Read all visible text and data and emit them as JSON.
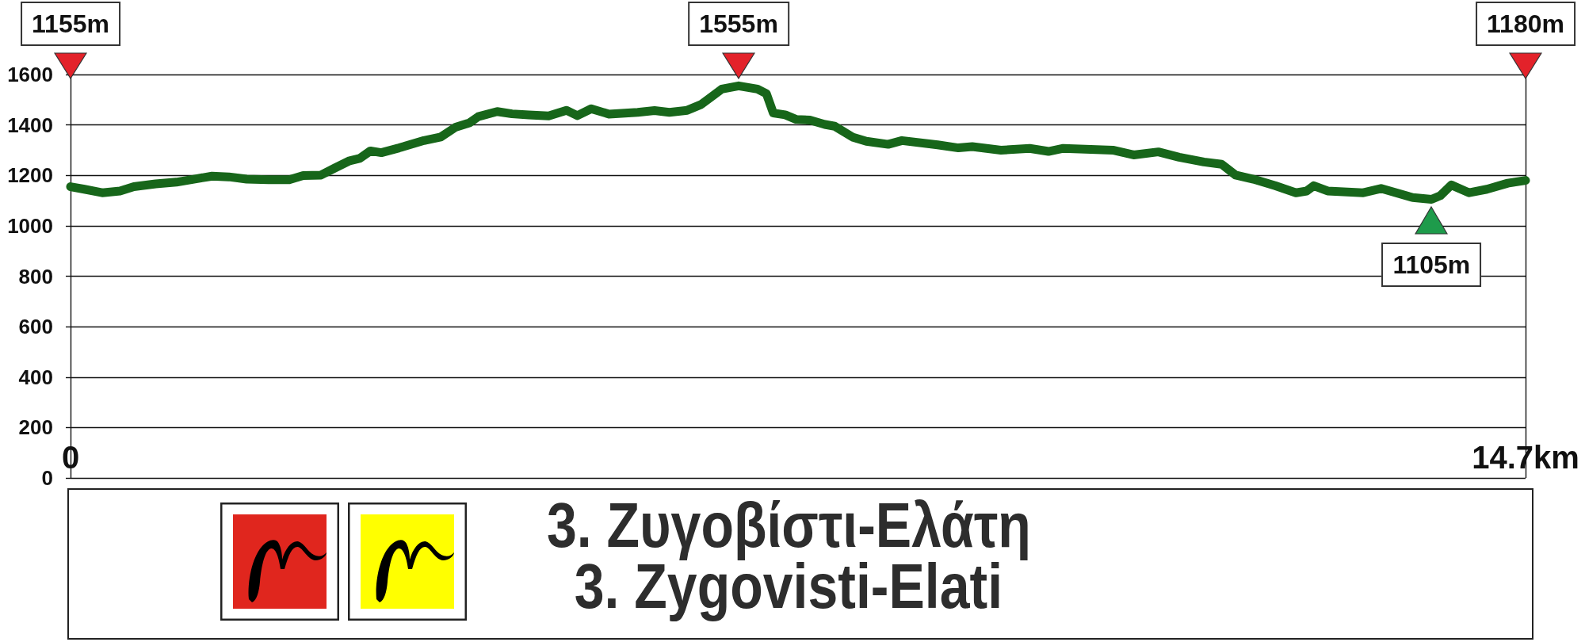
{
  "chart_data": {
    "type": "line",
    "title": "3. Ζυγοβίστι-Ελάτη",
    "subtitle": "3. Zygovisti-Elati",
    "x": [
      0,
      0.14,
      0.32,
      0.5,
      0.64,
      0.86,
      1.07,
      1.28,
      1.43,
      1.6,
      1.78,
      2,
      2.21,
      2.35,
      2.53,
      2.67,
      2.82,
      2.92,
      3.03,
      3.14,
      3.32,
      3.57,
      3.74,
      3.89,
      4.03,
      4.12,
      4.31,
      4.46,
      4.63,
      4.83,
      5.01,
      5.12,
      5.26,
      5.44,
      5.73,
      5.9,
      6.05,
      6.23,
      6.37,
      6.47,
      6.58,
      6.75,
      6.94,
      7.03,
      7.1,
      7.22,
      7.33,
      7.47,
      7.62,
      7.72,
      7.9,
      8.04,
      8.26,
      8.4,
      8.76,
      8.97,
      9.11,
      9.4,
      9.69,
      9.88,
      10.03,
      10.53,
      10.74,
      10.99,
      11.2,
      11.45,
      11.63,
      11.77,
      11.95,
      12.17,
      12.38,
      12.49,
      12.56,
      12.7,
      13.06,
      13.24,
      13.56,
      13.75,
      13.84,
      13.95,
      14.13,
      14.31,
      14.52,
      14.7
    ],
    "series": [
      {
        "color": "#17661a",
        "values": [
          1155,
          1145,
          1131,
          1138,
          1155,
          1166,
          1173,
          1187,
          1197,
          1194,
          1185,
          1183,
          1183,
          1199,
          1201,
          1229,
          1258,
          1267,
          1297,
          1290,
          1309,
          1338,
          1352,
          1391,
          1408,
          1433,
          1453,
          1444,
          1440,
          1436,
          1458,
          1437,
          1464,
          1443,
          1450,
          1457,
          1450,
          1458,
          1481,
          1510,
          1542,
          1555,
          1542,
          1524,
          1447,
          1440,
          1422,
          1419,
          1402,
          1395,
          1352,
          1335,
          1323,
          1338,
          1321,
          1309,
          1314,
          1300,
          1307,
          1295,
          1307,
          1300,
          1281,
          1293,
          1272,
          1253,
          1244,
          1201,
          1185,
          1159,
          1131,
          1138,
          1159,
          1138,
          1131,
          1148,
          1112,
          1105,
          1120,
          1162,
          1131,
          1145,
          1169,
          1180
        ]
      }
    ],
    "xlim": [
      0,
      14.7
    ],
    "xticks": [
      0,
      {
        "value": 14.7,
        "label": "14.7km"
      }
    ],
    "ylim": [
      0,
      1600
    ],
    "yticks": [
      0,
      200,
      400,
      600,
      800,
      1000,
      1200,
      1400,
      1600
    ],
    "grid": true,
    "marker": "none",
    "line_style": "solid",
    "annotations": [
      "1155m",
      "1555m",
      {
        "text": "1105m",
        "x": 13.75,
        "y": 1105
      },
      "1180m"
    ]
  }
}
